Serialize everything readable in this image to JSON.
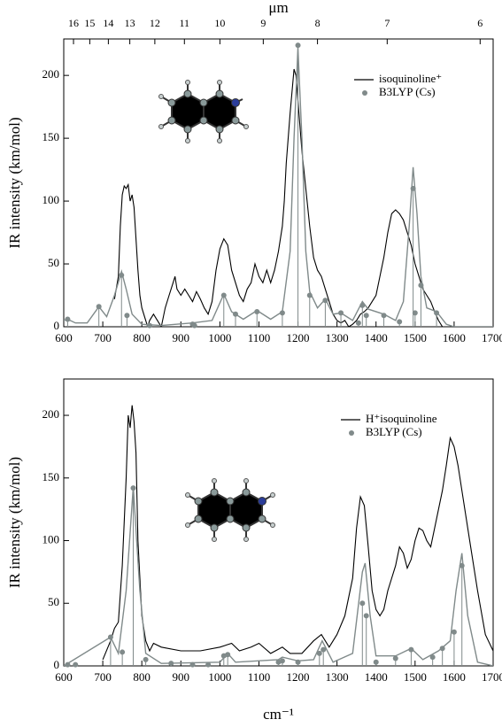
{
  "chart_data": [
    {
      "type": "line",
      "x2label": "μm",
      "ylabel": "IR intensity (km/mol)",
      "xlim": [
        600,
        1700
      ],
      "ylim": [
        0,
        229
      ],
      "xticks": [
        600,
        700,
        800,
        900,
        1000,
        1100,
        1200,
        1300,
        1400,
        1500,
        1600,
        1700
      ],
      "yticks": [
        0,
        50,
        100,
        150,
        200
      ],
      "x2ticks": [
        16,
        15,
        14,
        13,
        12,
        11,
        10,
        9,
        8,
        7,
        6
      ],
      "legend": "upper right",
      "series": [
        {
          "name": "isoquinoline⁺",
          "color": "#000000",
          "x": [
            730,
            740,
            745,
            750,
            755,
            760,
            765,
            770,
            775,
            780,
            785,
            790,
            795,
            800,
            810,
            815,
            820,
            830,
            840,
            850,
            860,
            870,
            880,
            885,
            890,
            900,
            910,
            920,
            930,
            940,
            950,
            960,
            970,
            980,
            990,
            1000,
            1010,
            1020,
            1030,
            1040,
            1050,
            1060,
            1070,
            1080,
            1090,
            1100,
            1110,
            1120,
            1130,
            1140,
            1150,
            1160,
            1165,
            1170,
            1180,
            1190,
            1195,
            1200,
            1210,
            1220,
            1230,
            1240,
            1250,
            1260,
            1270,
            1280,
            1290,
            1300,
            1310,
            1320,
            1330,
            1340,
            1350,
            1360,
            1370,
            1380,
            1390,
            1400,
            1410,
            1420,
            1430,
            1440,
            1450,
            1460,
            1470,
            1480,
            1490,
            1500,
            1510,
            1520,
            1530,
            1540,
            1550,
            1560,
            1570
          ],
          "values": [
            22,
            40,
            80,
            105,
            112,
            110,
            113,
            100,
            105,
            95,
            70,
            45,
            25,
            15,
            5,
            0,
            5,
            10,
            5,
            0,
            15,
            25,
            35,
            40,
            30,
            25,
            30,
            25,
            20,
            28,
            22,
            15,
            10,
            20,
            45,
            62,
            70,
            65,
            45,
            35,
            25,
            20,
            30,
            35,
            50,
            40,
            35,
            45,
            35,
            45,
            60,
            80,
            100,
            130,
            170,
            205,
            200,
            180,
            140,
            110,
            80,
            55,
            45,
            40,
            30,
            20,
            10,
            5,
            3,
            5,
            0,
            2,
            5,
            10,
            12,
            15,
            20,
            25,
            40,
            55,
            75,
            90,
            93,
            90,
            85,
            75,
            65,
            50,
            40,
            30,
            25,
            20,
            12,
            5,
            0
          ]
        },
        {
          "name": "B3LYP (Cs)",
          "color": "#808a8a",
          "marker": "stick",
          "x": [
            610,
            690,
            748,
            762,
            820,
            930,
            935,
            1010,
            1040,
            1095,
            1160,
            1200,
            1230,
            1270,
            1310,
            1355,
            1365,
            1375,
            1420,
            1460,
            1495,
            1500,
            1515,
            1555
          ],
          "values": [
            6,
            16,
            41,
            9,
            1,
            2,
            1,
            25,
            10,
            12,
            11,
            224,
            25,
            21,
            11,
            3,
            17,
            9,
            9,
            4,
            110,
            11,
            33,
            11
          ]
        },
        {
          "color": "#808a8a",
          "x": [
            600,
            610,
            630,
            660,
            690,
            710,
            730,
            748,
            760,
            775,
            800,
            850,
            930,
            980,
            1010,
            1030,
            1060,
            1095,
            1130,
            1160,
            1180,
            1190,
            1200,
            1210,
            1220,
            1230,
            1250,
            1270,
            1290,
            1310,
            1340,
            1365,
            1380,
            1420,
            1450,
            1470,
            1485,
            1495,
            1505,
            1515,
            1530,
            1555,
            1580,
            1600,
            1700
          ],
          "values": [
            5,
            6,
            3,
            3,
            16,
            8,
            25,
            44,
            30,
            10,
            2,
            1,
            3,
            5,
            26,
            12,
            6,
            13,
            6,
            12,
            60,
            150,
            222,
            150,
            60,
            28,
            15,
            22,
            10,
            11,
            5,
            20,
            14,
            10,
            5,
            20,
            80,
            127,
            90,
            40,
            15,
            12,
            2,
            0,
            0
          ]
        }
      ]
    },
    {
      "type": "line",
      "xlabel": "cm⁻¹",
      "ylabel": "IR intensity (km/mol)",
      "xlim": [
        600,
        1700
      ],
      "ylim": [
        0,
        229
      ],
      "xticks": [
        600,
        700,
        800,
        900,
        1000,
        1100,
        1200,
        1300,
        1400,
        1500,
        1600,
        1700
      ],
      "yticks": [
        0,
        50,
        100,
        150,
        200
      ],
      "legend": "upper right",
      "series": [
        {
          "name": "H⁺isoquinoline",
          "color": "#000000",
          "x": [
            700,
            720,
            730,
            740,
            750,
            760,
            765,
            770,
            775,
            780,
            785,
            790,
            800,
            810,
            820,
            830,
            850,
            900,
            950,
            1000,
            1030,
            1050,
            1080,
            1100,
            1130,
            1160,
            1180,
            1210,
            1240,
            1260,
            1280,
            1300,
            1320,
            1340,
            1350,
            1360,
            1370,
            1380,
            1390,
            1400,
            1410,
            1420,
            1430,
            1440,
            1450,
            1460,
            1470,
            1480,
            1490,
            1500,
            1510,
            1520,
            1530,
            1540,
            1550,
            1560,
            1570,
            1580,
            1590,
            1600,
            1610,
            1620,
            1640,
            1660,
            1680,
            1700
          ],
          "values": [
            5,
            20,
            30,
            35,
            80,
            150,
            200,
            190,
            208,
            195,
            170,
            100,
            40,
            20,
            12,
            18,
            15,
            12,
            12,
            15,
            18,
            12,
            15,
            18,
            10,
            15,
            10,
            10,
            20,
            25,
            15,
            25,
            40,
            70,
            110,
            135,
            128,
            95,
            60,
            45,
            40,
            45,
            60,
            70,
            80,
            95,
            90,
            78,
            85,
            100,
            110,
            108,
            100,
            95,
            110,
            125,
            140,
            160,
            182,
            175,
            160,
            140,
            100,
            60,
            25,
            12
          ]
        },
        {
          "name": "B3LYP (Cs)",
          "color": "#808a8a",
          "marker": "stick",
          "x": [
            610,
            630,
            720,
            750,
            778,
            810,
            875,
            930,
            970,
            1010,
            1020,
            1150,
            1160,
            1200,
            1255,
            1265,
            1365,
            1375,
            1400,
            1450,
            1490,
            1545,
            1570,
            1600,
            1620
          ],
          "values": [
            1,
            1,
            23,
            11,
            142,
            5,
            2,
            1,
            1,
            8,
            9,
            3,
            4,
            3,
            10,
            13,
            50,
            40,
            3,
            6,
            13,
            7,
            14,
            27,
            80
          ]
        },
        {
          "color": "#808a8a",
          "x": [
            600,
            720,
            740,
            760,
            778,
            795,
            810,
            850,
            1000,
            1020,
            1040,
            1150,
            1160,
            1200,
            1240,
            1262,
            1290,
            1340,
            1365,
            1372,
            1385,
            1400,
            1450,
            1490,
            1520,
            1560,
            1590,
            1605,
            1620,
            1635,
            1660,
            1700
          ],
          "values": [
            0,
            23,
            10,
            60,
            143,
            60,
            10,
            2,
            3,
            10,
            3,
            5,
            7,
            4,
            5,
            20,
            3,
            10,
            75,
            82,
            40,
            8,
            8,
            14,
            5,
            12,
            20,
            60,
            90,
            40,
            3,
            0
          ]
        }
      ]
    }
  ]
}
